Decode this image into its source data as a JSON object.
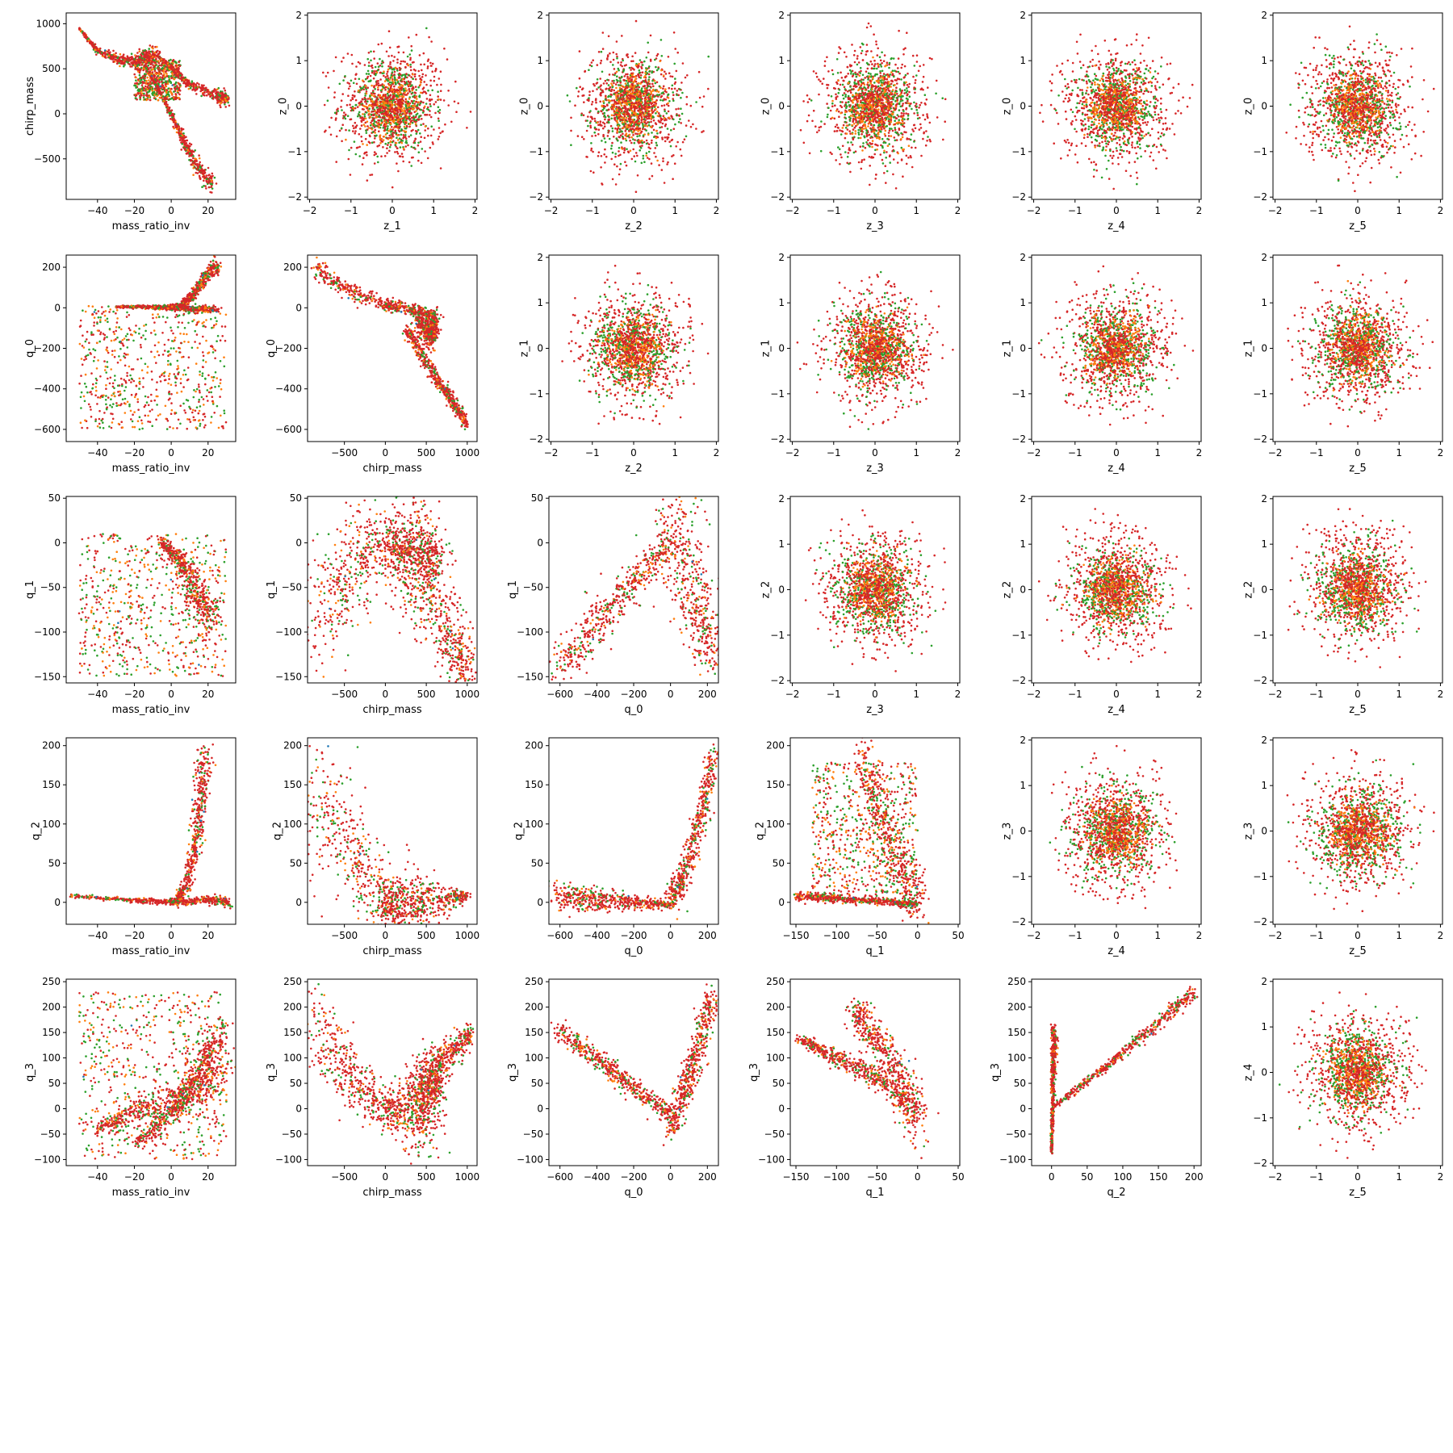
{
  "figure": {
    "type": "pairplot",
    "series_colors": [
      "#2ca02c",
      "#ff7f0e",
      "#d62728",
      "#1f77b4"
    ],
    "marker": "dot",
    "variables": {
      "mass_ratio_inv": {
        "label": "mass_ratio_inv",
        "lim": [
          -57,
          35
        ],
        "ticks": [
          -40,
          -20,
          0,
          20
        ]
      },
      "chirp_mass": {
        "label": "chirp_mass",
        "lim": [
          -950,
          1120
        ],
        "ticks": [
          -500,
          0,
          500,
          1000
        ]
      },
      "q_0": {
        "label": "q_0",
        "lim": [
          -660,
          260
        ],
        "ticks": [
          -600,
          -400,
          -200,
          0,
          200
        ]
      },
      "q_1": {
        "label": "q_1",
        "lim": [
          -157,
          52
        ],
        "ticks": [
          -150,
          -100,
          -50,
          0,
          50
        ]
      },
      "q_2": {
        "label": "q_2",
        "lim": [
          -28,
          210
        ],
        "ticks": [
          0,
          50,
          100,
          150,
          200
        ]
      },
      "q_3": {
        "label": "q_3",
        "lim": [
          -112,
          255
        ],
        "ticks": [
          -100,
          -50,
          0,
          50,
          100,
          150,
          200,
          250
        ]
      },
      "z_0": {
        "label": "z_0",
        "lim": [
          -2.05,
          2.05
        ],
        "ticks": [
          -2,
          -1,
          0,
          1,
          2
        ]
      },
      "z_1": {
        "label": "z_1",
        "lim": [
          -2.05,
          2.05
        ],
        "ticks": [
          -2,
          -1,
          0,
          1,
          2
        ]
      },
      "z_2": {
        "label": "z_2",
        "lim": [
          -2.05,
          2.05
        ],
        "ticks": [
          -2,
          -1,
          0,
          1,
          2
        ]
      },
      "z_3": {
        "label": "z_3",
        "lim": [
          -2.05,
          2.05
        ],
        "ticks": [
          -2,
          -1,
          0,
          1,
          2
        ]
      },
      "z_4": {
        "label": "z_4",
        "lim": [
          -2.05,
          2.05
        ],
        "ticks": [
          -2,
          -1,
          0,
          1,
          2
        ]
      },
      "z_5": {
        "label": "z_5",
        "lim": [
          -2.05,
          2.05
        ],
        "ticks": [
          -2,
          -1,
          0,
          1,
          2
        ]
      }
    }
  },
  "chart_data": [
    {
      "type": "scatter",
      "x": "z_1",
      "y": "z_0",
      "shape": "gaussian"
    },
    {
      "type": "scatter",
      "x": "z_2",
      "y": "z_0",
      "shape": "gaussian"
    },
    {
      "type": "scatter",
      "x": "z_3",
      "y": "z_0",
      "shape": "gaussian"
    },
    {
      "type": "scatter",
      "x": "z_4",
      "y": "z_0",
      "shape": "gaussian"
    },
    {
      "type": "scatter",
      "x": "z_5",
      "y": "z_0",
      "shape": "gaussian"
    },
    {
      "type": "scatter",
      "x": "mass_ratio_inv",
      "y": "chirp_mass",
      "shape": "curves",
      "curves": [
        {
          "x": [
            -50,
            -40,
            -25,
            -15,
            -8
          ],
          "y": [
            950,
            700,
            580,
            620,
            650
          ],
          "s": [
            4,
            60
          ]
        },
        {
          "x": [
            -8,
            0,
            10,
            25,
            30
          ],
          "y": [
            650,
            520,
            320,
            200,
            150
          ],
          "s": [
            3,
            40
          ]
        },
        {
          "x": [
            -12,
            -5,
            2,
            8,
            15,
            22
          ],
          "y": [
            450,
            200,
            -100,
            -350,
            -600,
            -800
          ],
          "s": [
            3,
            50
          ]
        }
      ],
      "cloud": {
        "x": [
          -20,
          5
        ],
        "y": [
          150,
          600
        ]
      }
    },
    {
      "type": "scatter",
      "x": "z_2",
      "y": "z_1",
      "shape": "gaussian"
    },
    {
      "type": "scatter",
      "x": "z_3",
      "y": "z_1",
      "shape": "gaussian"
    },
    {
      "type": "scatter",
      "x": "z_4",
      "y": "z_1",
      "shape": "gaussian"
    },
    {
      "type": "scatter",
      "x": "z_5",
      "y": "z_1",
      "shape": "gaussian"
    },
    {
      "type": "scatter",
      "x": "mass_ratio_inv",
      "y": "q_0",
      "shape": "curves",
      "curves": [
        {
          "x": [
            -5,
            5,
            12,
            18,
            25
          ],
          "y": [
            0,
            10,
            60,
            150,
            210
          ],
          "s": [
            3,
            20
          ]
        },
        {
          "x": [
            -30,
            -15,
            0,
            12,
            25
          ],
          "y": [
            5,
            5,
            0,
            -5,
            -10
          ],
          "s": [
            2,
            10
          ]
        }
      ],
      "cloud": {
        "x": [
          -50,
          30
        ],
        "y": [
          -600,
          10
        ]
      }
    },
    {
      "type": "scatter",
      "x": "chirp_mass",
      "y": "q_0",
      "shape": "curves",
      "curves": [
        {
          "x": [
            -850,
            -600,
            -300,
            0,
            200,
            400,
            600
          ],
          "y": [
            200,
            120,
            60,
            10,
            5,
            -20,
            -30
          ],
          "s": [
            25,
            10
          ]
        },
        {
          "x": [
            250,
            500,
            750,
            1000
          ],
          "y": [
            -100,
            -270,
            -420,
            -580
          ],
          "s": [
            20,
            15
          ]
        },
        {
          "x": [
            400,
            550,
            600
          ],
          "y": [
            -50,
            -150,
            -50
          ],
          "s": [
            30,
            30
          ]
        }
      ]
    },
    {
      "type": "scatter",
      "x": "z_3",
      "y": "z_2",
      "shape": "gaussian"
    },
    {
      "type": "scatter",
      "x": "z_4",
      "y": "z_2",
      "shape": "gaussian"
    },
    {
      "type": "scatter",
      "x": "z_5",
      "y": "z_2",
      "shape": "gaussian"
    },
    {
      "type": "scatter",
      "x": "mass_ratio_inv",
      "y": "q_1",
      "shape": "curves",
      "curves": [
        {
          "x": [
            -5,
            5,
            15,
            22
          ],
          "y": [
            0,
            -20,
            -60,
            -90
          ],
          "s": [
            3,
            12
          ]
        }
      ],
      "cloud": {
        "x": [
          -50,
          30
        ],
        "y": [
          -150,
          10
        ]
      }
    },
    {
      "type": "scatter",
      "x": "chirp_mass",
      "y": "q_1",
      "shape": "curves",
      "curves": [
        {
          "x": [
            -850,
            -600,
            -300,
            0,
            300
          ],
          "y": [
            -110,
            -50,
            -15,
            0,
            -5
          ],
          "s": [
            35,
            10
          ]
        },
        {
          "x": [
            300,
            550,
            800,
            1000
          ],
          "y": [
            -10,
            -60,
            -110,
            -145
          ],
          "s": [
            30,
            12
          ]
        },
        {
          "x": [
            100,
            400,
            600
          ],
          "y": [
            0,
            -10,
            -20
          ],
          "s": [
            40,
            15
          ]
        }
      ]
    },
    {
      "type": "scatter",
      "x": "q_0",
      "y": "q_1",
      "shape": "curves",
      "curves": [
        {
          "x": [
            -620,
            -400,
            -200,
            0
          ],
          "y": [
            -145,
            -90,
            -45,
            0
          ],
          "s": [
            15,
            8
          ]
        },
        {
          "x": [
            0,
            80,
            150,
            220
          ],
          "y": [
            30,
            -20,
            -80,
            -130
          ],
          "s": [
            30,
            15
          ]
        }
      ]
    },
    {
      "type": "scatter",
      "x": "z_4",
      "y": "z_3",
      "shape": "gaussian"
    },
    {
      "type": "scatter",
      "x": "z_5",
      "y": "z_3",
      "shape": "gaussian"
    },
    {
      "type": "scatter",
      "x": "mass_ratio_inv",
      "y": "q_2",
      "shape": "curves",
      "curves": [
        {
          "x": [
            -55,
            -20,
            0,
            20,
            32
          ],
          "y": [
            8,
            3,
            0,
            3,
            0
          ],
          "s": [
            1,
            3
          ]
        },
        {
          "x": [
            2,
            8,
            14,
            16,
            18
          ],
          "y": [
            0,
            20,
            80,
            130,
            190
          ],
          "s": [
            3,
            12
          ]
        }
      ]
    },
    {
      "type": "scatter",
      "x": "chirp_mass",
      "y": "q_2",
      "shape": "curves",
      "curves": [
        {
          "x": [
            -850,
            -600,
            -300,
            0,
            100
          ],
          "y": [
            170,
            90,
            40,
            0,
            -5
          ],
          "s": [
            40,
            10
          ]
        },
        {
          "x": [
            0,
            400,
            1000
          ],
          "y": [
            -3,
            -3,
            8
          ],
          "s": [
            30,
            3
          ]
        }
      ]
    },
    {
      "type": "scatter",
      "x": "q_0",
      "y": "q_2",
      "shape": "curves",
      "curves": [
        {
          "x": [
            -620,
            -300,
            0
          ],
          "y": [
            8,
            2,
            -3
          ],
          "s": [
            10,
            2
          ]
        },
        {
          "x": [
            0,
            60,
            120,
            180,
            230
          ],
          "y": [
            0,
            30,
            70,
            120,
            190
          ],
          "s": [
            10,
            8
          ]
        }
      ]
    },
    {
      "type": "scatter",
      "x": "q_1",
      "y": "q_2",
      "shape": "curves",
      "curves": [
        {
          "x": [
            -150,
            -100,
            -50,
            0
          ],
          "y": [
            8,
            5,
            2,
            -3
          ],
          "s": [
            3,
            2
          ]
        },
        {
          "x": [
            -70,
            -50,
            -30,
            -10,
            0
          ],
          "y": [
            190,
            120,
            70,
            20,
            -5
          ],
          "s": [
            12,
            20
          ]
        }
      ],
      "cloud": {
        "x": [
          -130,
          0
        ],
        "y": [
          0,
          180
        ]
      }
    },
    {
      "type": "scatter",
      "x": "z_5",
      "y": "z_4",
      "shape": "gaussian"
    },
    {
      "type": "scatter",
      "x": "mass_ratio_inv",
      "y": "q_3",
      "shape": "curves",
      "curves": [
        {
          "x": [
            -20,
            0,
            10,
            20,
            28
          ],
          "y": [
            -70,
            -10,
            40,
            100,
            160
          ],
          "s": [
            6,
            20
          ]
        },
        {
          "x": [
            -40,
            -20,
            0,
            15,
            30
          ],
          "y": [
            -40,
            -5,
            10,
            40,
            80
          ],
          "s": [
            6,
            25
          ]
        }
      ],
      "cloud": {
        "x": [
          -50,
          30
        ],
        "y": [
          -100,
          230
        ]
      }
    },
    {
      "type": "scatter",
      "x": "chirp_mass",
      "y": "q_3",
      "shape": "curves",
      "curves": [
        {
          "x": [
            -850,
            -600,
            -300,
            0,
            200
          ],
          "y": [
            190,
            100,
            40,
            0,
            -10
          ],
          "s": [
            40,
            15
          ]
        },
        {
          "x": [
            200,
            500,
            800,
            1050
          ],
          "y": [
            0,
            60,
            110,
            150
          ],
          "s": [
            30,
            10
          ]
        },
        {
          "x": [
            400,
            500,
            600
          ],
          "y": [
            -50,
            20,
            80
          ],
          "s": [
            40,
            20
          ]
        }
      ]
    },
    {
      "type": "scatter",
      "x": "q_0",
      "y": "q_3",
      "shape": "curves",
      "curves": [
        {
          "x": [
            -620,
            -400,
            -200,
            0
          ],
          "y": [
            155,
            100,
            40,
            -10
          ],
          "s": [
            10,
            10
          ]
        },
        {
          "x": [
            0,
            80,
            150,
            230
          ],
          "y": [
            -50,
            40,
            120,
            220
          ],
          "s": [
            15,
            15
          ]
        }
      ]
    },
    {
      "type": "scatter",
      "x": "q_1",
      "y": "q_3",
      "shape": "curves",
      "curves": [
        {
          "x": [
            -150,
            -100,
            -50,
            0
          ],
          "y": [
            140,
            100,
            60,
            0
          ],
          "s": [
            5,
            15
          ]
        },
        {
          "x": [
            -80,
            -50,
            -20,
            0
          ],
          "y": [
            200,
            130,
            60,
            -50
          ],
          "s": [
            15,
            25
          ]
        }
      ]
    },
    {
      "type": "scatter",
      "x": "q_2",
      "y": "q_3",
      "shape": "curves",
      "curves": [
        {
          "x": [
            0,
            1,
            2,
            3,
            4
          ],
          "y": [
            -90,
            -20,
            40,
            100,
            160
          ],
          "s": [
            1.5,
            6
          ]
        },
        {
          "x": [
            0,
            50,
            100,
            150,
            200
          ],
          "y": [
            0,
            55,
            110,
            170,
            230
          ],
          "s": [
            3,
            8
          ]
        }
      ]
    }
  ]
}
